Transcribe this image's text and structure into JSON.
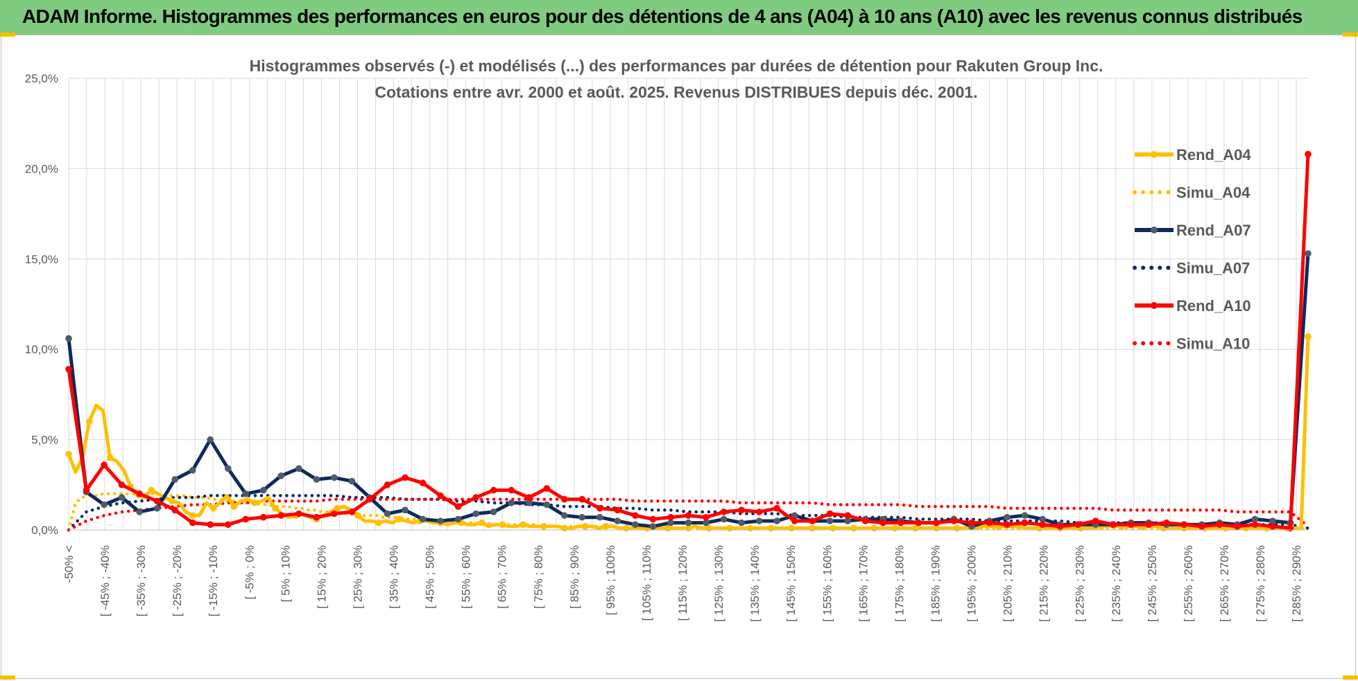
{
  "header": {
    "banner_title": "ADAM Informe. Histogrammes des performances en euros pour des détentions de 4 ans (A04) à 10 ans (A10) avec les revenus connus distribués"
  },
  "colors": {
    "banner_bg": "#7fcb7f",
    "A04": "#ffc000",
    "A07": "#0d2a5c",
    "A10": "#ff0000",
    "A07_marker": "#4f5b6b",
    "grid": "#d9d9d9",
    "axis_text": "#595959"
  },
  "chart_data": {
    "type": "line",
    "title": [
      "Histogrammes observés (-) et modélisés (...) des performances par durées de détention pour Rakuten Group Inc.",
      "Cotations entre avr. 2000 et août. 2025. Revenus DISTRIBUES depuis déc. 2001."
    ],
    "ylim": [
      0,
      25
    ],
    "y_ticks": [
      "0,0%",
      "5,0%",
      "10,0%",
      "15,0%",
      "20,0%",
      "25,0%"
    ],
    "grid": true,
    "legend_position": "right",
    "x_tick_labels": [
      "-50% <",
      "[ -45% ; -40%",
      "[ -35% ; -30%",
      "[ -25% ; -20%",
      "[ -15% ; -10%",
      "[ -5% ; 0%",
      "[ 5% ; 10%",
      "[ 15% ; 20%",
      "[ 25% ; 30%",
      "[ 35% ; 40%",
      "[ 45% ; 50%",
      "[ 55% ; 60%",
      "[ 65% ; 70%",
      "[ 75% ; 80%",
      "[ 85% ; 90%",
      "[ 95% ; 100%",
      "[ 105% ; 110%",
      "[ 115% ; 120%",
      "[ 125% ; 130%",
      "[ 135% ; 140%",
      "[ 145% ; 150%",
      "[ 155% ; 160%",
      "[ 165% ; 170%",
      "[ 175% ; 180%",
      "[ 185% ; 190%",
      "[ 195% ; 200%",
      "[ 205% ; 210%",
      "[ 215% ; 220%",
      "[ 225% ; 230%",
      "[ 235% ; 240%",
      "[ 245% ; 250%",
      "[ 255% ; 260%",
      "[ 265% ; 270%",
      "[ 275% ; 280%",
      "[ 285% ; 290%"
    ],
    "series": [
      {
        "name": "Rend_A04",
        "style": "solid",
        "color": "#ffc000",
        "values": [
          4.2,
          3.2,
          4.0,
          6.0,
          6.9,
          6.6,
          4.0,
          3.8,
          3.3,
          2.4,
          1.9,
          1.8,
          2.2,
          2.0,
          1.8,
          1.6,
          1.5,
          1.0,
          0.8,
          0.8,
          1.5,
          1.2,
          1.5,
          1.9,
          1.3,
          1.6,
          1.7,
          1.5,
          1.6,
          1.8,
          1.2,
          0.9,
          0.7,
          0.8,
          0.9,
          0.7,
          0.6,
          0.8,
          1.0,
          1.2,
          1.3,
          1.1,
          0.8,
          0.5,
          0.5,
          0.4,
          0.5,
          0.4,
          0.6,
          0.5,
          0.4,
          0.5,
          0.5,
          0.4,
          0.4,
          0.3,
          0.4,
          0.4,
          0.3,
          0.3,
          0.4,
          0.2,
          0.3,
          0.3,
          0.2,
          0.2,
          0.3,
          0.2,
          0.2,
          0.2,
          0.2,
          0.2,
          0.1,
          0.1,
          0.2,
          0.2,
          0.2,
          0.1,
          0.2,
          0.2,
          0.1,
          0.1,
          0.1,
          0.1,
          0.1,
          0.1,
          0.1,
          0.1,
          0.1,
          0.1,
          0.1,
          0.2,
          0.1,
          0.1,
          0.1,
          0.1,
          0.1,
          0.1,
          0.1,
          0.1,
          0.1,
          0.1,
          0.1,
          0.1,
          0.1,
          0.1,
          0.1,
          0.1,
          0.1,
          0.1,
          0.1,
          0.1,
          0.1,
          0.1,
          0.1,
          0.1,
          0.1,
          0.1,
          0.1,
          0.1,
          0.1,
          0.1,
          0.1,
          0.1,
          0.1,
          0.1,
          0.1,
          0.1,
          0.1,
          0.1,
          0.1,
          0.2,
          0.2,
          0.2,
          0.2,
          0.2,
          0.2,
          0.2,
          0.2,
          0.1,
          0.1,
          0.1,
          0.1,
          0.1,
          0.1,
          0.1,
          0.1,
          0.1,
          0.1,
          0.1,
          0.2,
          0.2,
          0.2,
          0.2,
          0.2,
          0.2,
          0.2,
          0.2,
          0.2,
          0.1,
          0.1,
          0.1,
          0.1,
          0.1,
          0.1,
          0.1,
          0.1,
          0.1,
          0.1,
          0.1,
          0.1,
          0.1,
          0.1,
          0.1,
          0.1,
          0.1,
          0.1,
          0.1,
          0.1,
          0.1,
          10.7
        ]
      },
      {
        "name": "Simu_A04",
        "style": "dotted",
        "color": "#ffc000",
        "values": [
          0.0,
          1.5,
          1.8,
          1.9,
          1.9,
          2.0,
          2.0,
          2.0,
          2.0,
          2.0,
          2.0,
          2.0,
          2.0,
          2.0,
          1.9,
          1.9,
          1.9,
          1.9,
          1.8,
          1.8,
          1.8,
          1.7,
          1.7,
          1.6,
          1.6,
          1.6,
          1.5,
          1.5,
          1.4,
          1.4,
          1.3,
          1.3,
          1.3,
          1.2,
          1.2,
          1.1,
          1.1,
          1.0,
          1.0,
          1.0,
          0.9,
          0.9,
          0.9,
          0.8,
          0.8,
          0.8,
          0.7,
          0.7,
          0.7,
          0.6,
          0.6,
          0.6,
          0.6,
          0.5,
          0.5,
          0.5,
          0.5,
          0.4,
          0.4,
          0.4,
          0.4,
          0.4,
          0.3,
          0.3,
          0.3,
          0.3,
          0.3,
          0.3,
          0.3,
          0.2,
          0.2,
          0.2,
          0.2,
          0.2,
          0.2,
          0.2,
          0.2,
          0.2,
          0.2,
          0.2,
          0.2,
          0.1,
          0.1,
          0.1,
          0.1,
          0.1,
          0.1,
          0.1,
          0.1,
          0.1,
          0.1,
          0.1,
          0.1,
          0.1,
          0.1,
          0.1,
          0.1,
          0.1,
          0.1,
          0.1,
          0.1,
          0.1,
          0.1,
          0.1,
          0.1,
          0.1,
          0.1,
          0.1,
          0.1,
          0.1,
          0.1,
          0.1,
          0.1,
          0.1,
          0.1,
          0.1,
          0.1,
          0.1,
          0.1,
          0.1,
          0.1,
          0.1,
          0.1,
          0.1,
          0.1,
          0.1,
          0.1,
          0.1,
          0.1,
          0.1,
          0.1,
          0.1,
          0.1,
          0.1,
          0.1,
          0.1,
          0.1,
          0.1,
          0.1,
          0.1,
          0.1,
          0.1,
          0.1,
          0.1,
          0.1,
          0.1,
          0.1,
          0.1,
          0.1,
          0.1,
          0.1,
          0.1,
          0.1,
          0.1,
          0.1,
          0.1,
          0.1,
          0.1,
          0.1,
          0.1,
          0.1,
          0.1,
          0.1,
          0.1,
          0.1,
          0.1,
          0.1,
          0.1,
          0.1,
          0.1,
          0.1,
          0.1,
          0.1,
          0.1,
          0.1,
          0.1,
          0.1,
          0.1,
          0.1,
          0.1,
          0.1,
          0.0
        ]
      },
      {
        "name": "Rend_A07",
        "style": "solid",
        "color": "#0d2a5c",
        "values": [
          10.6,
          2.1,
          1.4,
          1.8,
          1.0,
          1.2,
          2.8,
          3.3,
          5.0,
          3.4,
          2.0,
          2.2,
          3.0,
          3.4,
          2.8,
          2.9,
          2.7,
          1.8,
          0.9,
          1.1,
          0.6,
          0.5,
          0.6,
          0.9,
          1.0,
          1.5,
          1.5,
          1.4,
          0.8,
          0.7,
          0.7,
          0.5,
          0.3,
          0.2,
          0.4,
          0.4,
          0.4,
          0.6,
          0.4,
          0.5,
          0.5,
          0.8,
          0.5,
          0.5,
          0.5,
          0.6,
          0.6,
          0.5,
          0.4,
          0.4,
          0.6,
          0.2,
          0.5,
          0.7,
          0.8,
          0.6,
          0.3,
          0.3,
          0.3,
          0.3,
          0.4,
          0.4,
          0.3,
          0.3,
          0.3,
          0.4,
          0.3,
          0.6,
          0.5,
          0.4,
          15.3
        ]
      },
      {
        "name": "Simu_A07",
        "style": "dotted",
        "color": "#0d2a5c",
        "values": [
          0.0,
          1.0,
          1.3,
          1.5,
          1.6,
          1.7,
          1.8,
          1.8,
          1.9,
          1.9,
          1.9,
          1.9,
          1.9,
          1.9,
          1.9,
          1.9,
          1.8,
          1.8,
          1.8,
          1.7,
          1.7,
          1.7,
          1.6,
          1.6,
          1.5,
          1.5,
          1.4,
          1.4,
          1.3,
          1.3,
          1.3,
          1.2,
          1.2,
          1.1,
          1.1,
          1.0,
          1.0,
          1.0,
          0.9,
          0.9,
          0.9,
          0.8,
          0.8,
          0.8,
          0.7,
          0.7,
          0.7,
          0.7,
          0.6,
          0.6,
          0.6,
          0.6,
          0.5,
          0.5,
          0.5,
          0.5,
          0.5,
          0.4,
          0.4,
          0.4,
          0.4,
          0.4,
          0.4,
          0.3,
          0.3,
          0.3,
          0.3,
          0.3,
          0.3,
          0.3,
          0.1
        ]
      },
      {
        "name": "Rend_A10",
        "style": "solid",
        "color": "#ff0000",
        "values": [
          8.9,
          2.2,
          3.6,
          2.5,
          2.0,
          1.6,
          1.1,
          0.4,
          0.3,
          0.3,
          0.6,
          0.7,
          0.8,
          0.9,
          0.7,
          0.9,
          1.0,
          1.7,
          2.5,
          2.9,
          2.6,
          1.9,
          1.3,
          1.8,
          2.2,
          2.2,
          1.8,
          2.3,
          1.7,
          1.7,
          1.2,
          1.1,
          0.8,
          0.6,
          0.7,
          0.8,
          0.7,
          1.0,
          1.1,
          1.0,
          1.2,
          0.5,
          0.5,
          0.9,
          0.8,
          0.5,
          0.4,
          0.4,
          0.4,
          0.4,
          0.5,
          0.4,
          0.4,
          0.3,
          0.4,
          0.3,
          0.2,
          0.3,
          0.5,
          0.3,
          0.3,
          0.3,
          0.4,
          0.3,
          0.2,
          0.3,
          0.2,
          0.3,
          0.2,
          0.1,
          20.8
        ]
      },
      {
        "name": "Simu_A10",
        "style": "dotted",
        "color": "#ff0000",
        "values": [
          0.0,
          0.5,
          0.8,
          1.0,
          1.1,
          1.2,
          1.3,
          1.4,
          1.4,
          1.5,
          1.5,
          1.6,
          1.6,
          1.6,
          1.6,
          1.7,
          1.7,
          1.7,
          1.7,
          1.7,
          1.7,
          1.7,
          1.7,
          1.7,
          1.7,
          1.7,
          1.7,
          1.7,
          1.7,
          1.7,
          1.7,
          1.7,
          1.6,
          1.6,
          1.6,
          1.6,
          1.6,
          1.6,
          1.5,
          1.5,
          1.5,
          1.5,
          1.5,
          1.4,
          1.4,
          1.4,
          1.4,
          1.4,
          1.3,
          1.3,
          1.3,
          1.3,
          1.3,
          1.2,
          1.2,
          1.2,
          1.2,
          1.2,
          1.2,
          1.1,
          1.1,
          1.1,
          1.1,
          1.1,
          1.1,
          1.1,
          1.0,
          1.0,
          1.0,
          1.0,
          0.2
        ]
      }
    ]
  }
}
